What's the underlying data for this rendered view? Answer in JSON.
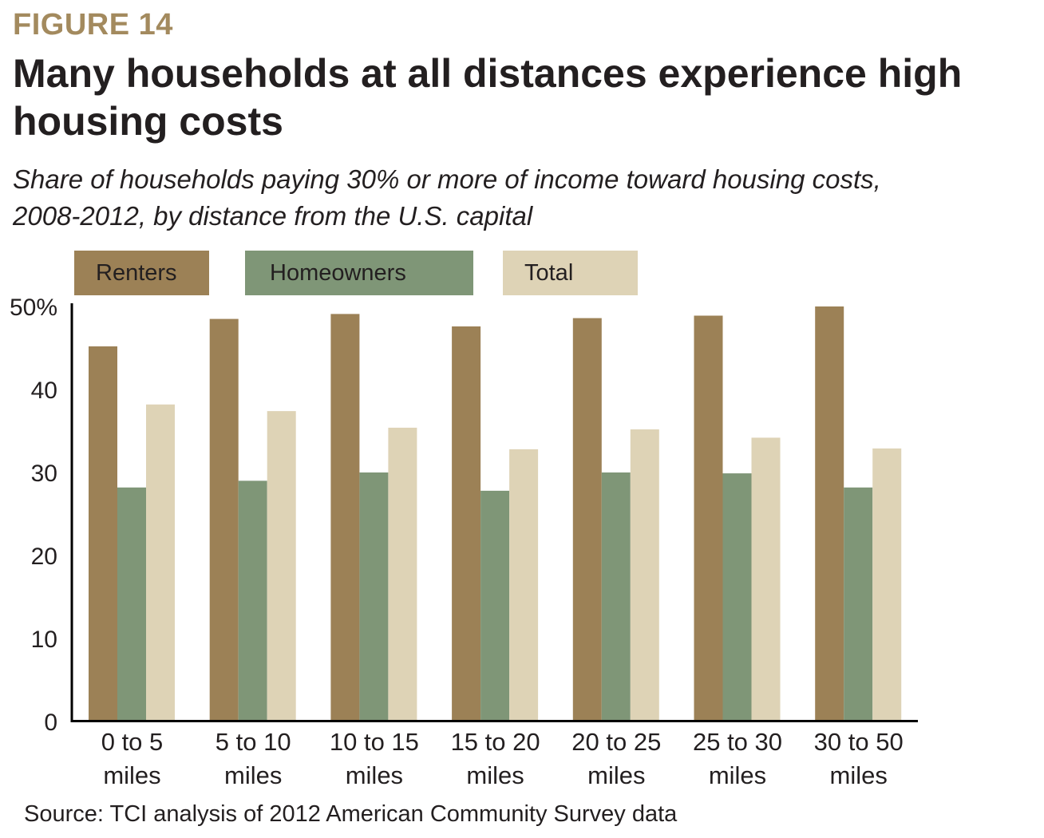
{
  "figure_label": "FIGURE 14",
  "title": "Many households at all distances experience high housing costs",
  "subtitle_line1": "Share of households paying 30% or more of income toward housing costs,",
  "subtitle_line2": "2008-2012, by distance from the U.S. capital",
  "source": "Source: TCI analysis of 2012 American Community Survey data",
  "colors": {
    "renters": "#9c8156",
    "homeowners": "#7f9677",
    "total": "#ded3b6",
    "title_accent": "#a38a5e"
  },
  "legend": [
    {
      "key": "renters",
      "label": "Renters"
    },
    {
      "key": "homeowners",
      "label": "Homeowners"
    },
    {
      "key": "total",
      "label": "Total"
    }
  ],
  "chart_data": {
    "type": "bar",
    "title": "Many households at all distances experience high housing costs",
    "categories": [
      [
        "0 to 5",
        "miles"
      ],
      [
        "5 to 10",
        "miles"
      ],
      [
        "10 to 15",
        "miles"
      ],
      [
        "15 to 20",
        "miles"
      ],
      [
        "20 to 25",
        "miles"
      ],
      [
        "25 to 30",
        "miles"
      ],
      [
        "30 to 50",
        "miles"
      ]
    ],
    "series": [
      {
        "key": "renters",
        "name": "Renters",
        "values": [
          45.1,
          48.4,
          49.0,
          47.5,
          48.5,
          48.8,
          49.9
        ]
      },
      {
        "key": "homeowners",
        "name": "Homeowners",
        "values": [
          28.1,
          28.9,
          29.9,
          27.7,
          29.9,
          29.8,
          28.1
        ]
      },
      {
        "key": "total",
        "name": "Total",
        "values": [
          38.1,
          37.3,
          35.3,
          32.7,
          35.1,
          34.1,
          32.8
        ]
      }
    ],
    "ylim": [
      0,
      50
    ],
    "yticks": [
      {
        "value": 0,
        "label": "0"
      },
      {
        "value": 10,
        "label": "10"
      },
      {
        "value": 20,
        "label": "20"
      },
      {
        "value": 30,
        "label": "30"
      },
      {
        "value": 40,
        "label": "40"
      },
      {
        "value": 50,
        "label": "50%"
      }
    ],
    "xlabel": "",
    "ylabel": "",
    "grid": false,
    "legend_position": "top"
  }
}
